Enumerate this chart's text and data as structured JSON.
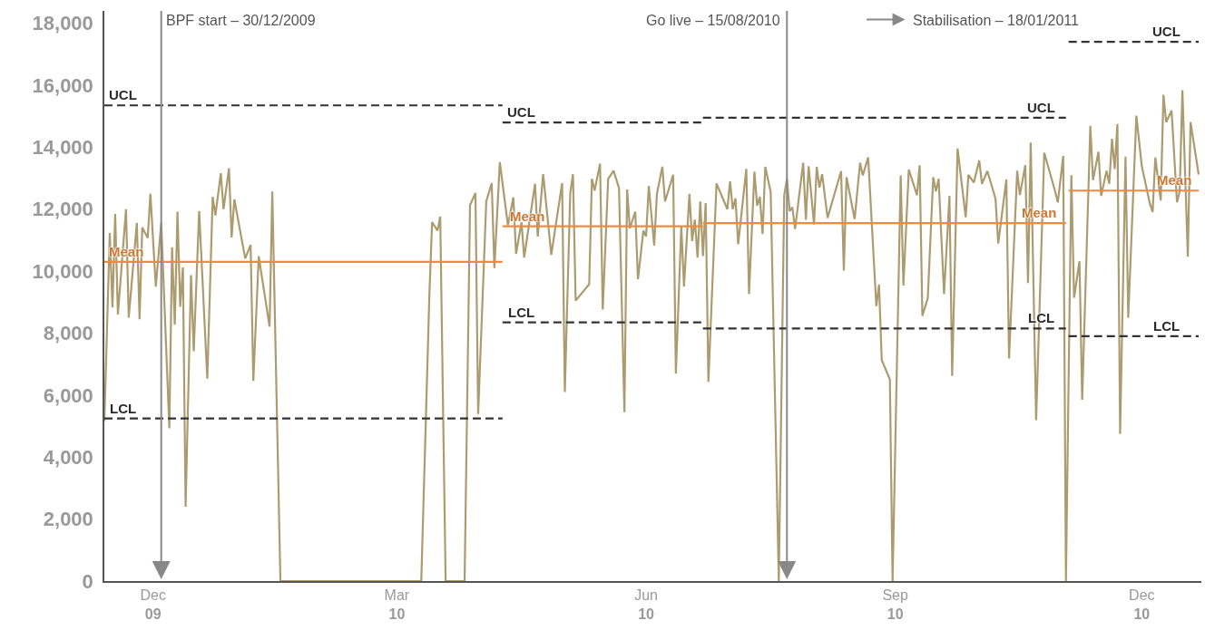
{
  "chart_data": {
    "type": "line",
    "marker": "none",
    "xlim": [
      "2009-11-13",
      "2010-12-23"
    ],
    "xticks": [
      {
        "value": "2009-12-01",
        "label": "Dec\n09"
      },
      {
        "value": "2010-03-01",
        "label": "Mar\n10"
      },
      {
        "value": "2010-06-01",
        "label": "Jun\n10"
      },
      {
        "value": "2010-09-01",
        "label": "Sep\n10"
      },
      {
        "value": "2010-12-01",
        "label": "Dec\n10"
      }
    ],
    "ylim": [
      0,
      18400
    ],
    "yticks": [
      {
        "value": 0,
        "label": "0"
      },
      {
        "value": 2000,
        "label": "2,000"
      },
      {
        "value": 4000,
        "label": "4,000"
      },
      {
        "value": 6000,
        "label": "6,000"
      },
      {
        "value": 8000,
        "label": "8,000"
      },
      {
        "value": 10000,
        "label": "10,000"
      },
      {
        "value": 12000,
        "label": "12,000"
      },
      {
        "value": 14000,
        "label": "14,000"
      },
      {
        "value": 16000,
        "label": "16,000"
      },
      {
        "value": 18000,
        "label": "18,000"
      }
    ],
    "series": [
      {
        "color": "#ab9b6f",
        "line_style": "solid",
        "x": [
          "2009-11-13",
          "2009-11-15",
          "2009-11-16",
          "2009-11-17",
          "2009-11-18",
          "2009-11-21",
          "2009-11-22",
          "2009-11-25",
          "2009-11-26",
          "2009-11-27",
          "2009-11-29",
          "2009-11-30",
          "2009-12-02",
          "2009-12-04",
          "2009-12-07",
          "2009-12-08",
          "2009-12-09",
          "2009-12-10",
          "2009-12-11",
          "2009-12-12",
          "2009-12-13",
          "2009-12-15",
          "2009-12-16",
          "2009-12-18",
          "2009-12-21",
          "2009-12-23",
          "2009-12-24",
          "2009-12-26",
          "2009-12-27",
          "2009-12-29",
          "2009-12-30",
          "2009-12-31",
          "2010-01-04",
          "2010-01-06",
          "2010-01-07",
          "2010-01-09",
          "2010-01-13",
          "2010-01-14",
          "2010-01-17",
          "2010-03-10",
          "2010-03-13",
          "2010-03-14",
          "2010-03-16",
          "2010-03-17",
          "2010-03-19",
          "2010-03-26",
          "2010-03-28",
          "2010-03-30",
          "2010-03-31",
          "2010-04-03",
          "2010-04-05",
          "2010-04-06",
          "2010-04-08",
          "2010-04-11",
          "2010-04-13",
          "2010-04-14",
          "2010-04-16",
          "2010-04-17",
          "2010-04-21",
          "2010-04-22",
          "2010-04-24",
          "2010-04-27",
          "2010-05-01",
          "2010-05-02",
          "2010-05-04",
          "2010-05-05",
          "2010-05-06",
          "2010-05-11",
          "2010-05-12",
          "2010-05-13",
          "2010-05-15",
          "2010-05-16",
          "2010-05-18",
          "2010-05-20",
          "2010-05-22",
          "2010-05-24",
          "2010-05-25",
          "2010-05-26",
          "2010-05-28",
          "2010-05-29",
          "2010-05-31",
          "2010-06-01",
          "2010-06-02",
          "2010-06-04",
          "2010-06-05",
          "2010-06-07",
          "2010-06-08",
          "2010-06-11",
          "2010-06-12",
          "2010-06-14",
          "2010-06-15",
          "2010-06-17",
          "2010-06-18",
          "2010-06-19",
          "2010-06-20",
          "2010-06-21",
          "2010-06-22",
          "2010-06-23",
          "2010-06-24",
          "2010-06-27",
          "2010-07-01",
          "2010-07-02",
          "2010-07-03",
          "2010-07-04",
          "2010-07-05",
          "2010-07-08",
          "2010-07-09",
          "2010-07-11",
          "2010-07-12",
          "2010-07-13",
          "2010-07-14",
          "2010-07-15",
          "2010-07-17",
          "2010-07-20",
          "2010-07-22",
          "2010-07-23",
          "2010-07-24",
          "2010-07-25",
          "2010-07-26",
          "2010-07-29",
          "2010-07-30",
          "2010-07-31",
          "2010-08-02",
          "2010-08-03",
          "2010-08-04",
          "2010-08-05",
          "2010-08-07",
          "2010-08-12",
          "2010-08-13",
          "2010-08-14",
          "2010-08-17",
          "2010-08-19",
          "2010-08-20",
          "2010-08-22",
          "2010-08-25",
          "2010-08-26",
          "2010-08-27",
          "2010-08-30",
          "2010-08-31",
          "2010-09-03",
          "2010-09-04",
          "2010-09-06",
          "2010-09-09",
          "2010-09-10",
          "2010-09-11",
          "2010-09-13",
          "2010-09-15",
          "2010-09-16",
          "2010-09-17",
          "2010-09-19",
          "2010-09-21",
          "2010-09-22",
          "2010-09-24",
          "2010-09-27",
          "2010-09-28",
          "2010-09-30",
          "2010-10-02",
          "2010-10-03",
          "2010-10-05",
          "2010-10-08",
          "2010-10-09",
          "2010-10-12",
          "2010-10-13",
          "2010-10-16",
          "2010-10-17",
          "2010-10-19",
          "2010-10-20",
          "2010-10-21",
          "2010-10-23",
          "2010-10-26",
          "2010-10-30",
          "2010-10-31",
          "2010-11-02",
          "2010-11-03",
          "2010-11-05",
          "2010-11-06",
          "2010-11-08",
          "2010-11-09",
          "2010-11-12",
          "2010-11-13",
          "2010-11-15",
          "2010-11-16",
          "2010-11-18",
          "2010-11-19",
          "2010-11-20",
          "2010-11-21",
          "2010-11-22",
          "2010-11-23",
          "2010-11-25",
          "2010-11-26",
          "2010-11-29",
          "2010-12-01",
          "2010-12-04",
          "2010-12-05",
          "2010-12-06",
          "2010-12-08",
          "2010-12-09",
          "2010-12-10",
          "2010-12-12",
          "2010-12-14",
          "2010-12-15",
          "2010-12-16",
          "2010-12-18",
          "2010-12-19",
          "2010-12-22"
        ],
        "values": [
          5160,
          11230,
          8830,
          11850,
          8600,
          12000,
          8500,
          11560,
          8450,
          11410,
          11070,
          12500,
          9500,
          11560,
          4930,
          10770,
          8270,
          11920,
          8850,
          10120,
          2400,
          9870,
          7420,
          11940,
          6530,
          12400,
          11800,
          13160,
          12000,
          13320,
          11090,
          12320,
          10410,
          10850,
          6460,
          10480,
          8210,
          12570,
          0,
          0,
          9240,
          11580,
          11310,
          11760,
          0,
          0,
          12130,
          12520,
          5390,
          12250,
          12840,
          10100,
          13520,
          11480,
          12380,
          10560,
          11580,
          10440,
          12820,
          11120,
          13130,
          10530,
          12840,
          6100,
          12520,
          13130,
          9050,
          9580,
          12980,
          12600,
          13470,
          8760,
          12980,
          13240,
          12680,
          5450,
          12640,
          11380,
          11920,
          9740,
          11310,
          11120,
          12750,
          10830,
          12500,
          13370,
          12250,
          13110,
          6690,
          11450,
          9500,
          12500,
          10970,
          11660,
          10440,
          12250,
          10490,
          12200,
          6430,
          12830,
          12000,
          12900,
          12000,
          12350,
          10870,
          13300,
          9260,
          13210,
          12110,
          12400,
          11200,
          13370,
          12550,
          0,
          12450,
          12980,
          11940,
          12060,
          11360,
          13500,
          11660,
          13390,
          11510,
          13370,
          12700,
          13130,
          11720,
          13230,
          10020,
          13030,
          11680,
          13500,
          13090,
          13670,
          8870,
          9570,
          7130,
          6510,
          0,
          13090,
          9540,
          13280,
          12450,
          13420,
          8560,
          9130,
          13030,
          12580,
          12980,
          9260,
          12430,
          6620,
          13960,
          11740,
          13110,
          12860,
          13570,
          12820,
          13230,
          12340,
          10890,
          12960,
          7180,
          13240,
          12460,
          13420,
          9620,
          14150,
          5190,
          13820,
          12580,
          12220,
          13720,
          0,
          13100,
          9140,
          10320,
          5850,
          14690,
          12940,
          13850,
          12430,
          13240,
          12820,
          14270,
          13300,
          14750,
          4750,
          13700,
          8500,
          15020,
          13390,
          12180,
          11910,
          13670,
          12280,
          15690,
          14810,
          15180,
          12220,
          12580,
          15840,
          10470,
          14810,
          13120
        ]
      },
      {
        "color": "#333333",
        "line_style": "dashed",
        "x": [
          "2009-11-13",
          "2010-04-09"
        ],
        "values": [
          15350,
          15350
        ]
      },
      {
        "color": "#f08a3c",
        "line_style": "solid",
        "x": [
          "2009-11-13",
          "2010-04-09"
        ],
        "values": [
          10300,
          10300
        ]
      },
      {
        "color": "#333333",
        "line_style": "dashed",
        "x": [
          "2009-11-13",
          "2010-04-09"
        ],
        "values": [
          5250,
          5250
        ]
      },
      {
        "color": "#333333",
        "line_style": "dashed",
        "x": [
          "2010-04-09",
          "2010-06-22"
        ],
        "values": [
          14800,
          14800
        ]
      },
      {
        "color": "#f08a3c",
        "line_style": "solid",
        "x": [
          "2010-04-09",
          "2010-06-22"
        ],
        "values": [
          11450,
          11450
        ]
      },
      {
        "color": "#333333",
        "line_style": "dashed",
        "x": [
          "2010-04-09",
          "2010-06-22"
        ],
        "values": [
          8350,
          8350
        ]
      },
      {
        "color": "#333333",
        "line_style": "dashed",
        "x": [
          "2010-06-22",
          "2010-11-03"
        ],
        "values": [
          14950,
          14950
        ]
      },
      {
        "color": "#f08a3c",
        "line_style": "solid",
        "x": [
          "2010-06-22",
          "2010-11-03"
        ],
        "values": [
          11550,
          11550
        ]
      },
      {
        "color": "#333333",
        "line_style": "dashed",
        "x": [
          "2010-06-22",
          "2010-11-03"
        ],
        "values": [
          8150,
          8150
        ]
      },
      {
        "color": "#333333",
        "line_style": "dashed",
        "x": [
          "2010-11-04",
          "2010-12-22"
        ],
        "values": [
          17400,
          17400
        ]
      },
      {
        "color": "#f08a3c",
        "line_style": "solid",
        "x": [
          "2010-11-04",
          "2010-12-22"
        ],
        "values": [
          12600,
          12600
        ]
      },
      {
        "color": "#333333",
        "line_style": "dashed",
        "x": [
          "2010-11-04",
          "2010-12-22"
        ],
        "values": [
          7900,
          7900
        ]
      }
    ],
    "ref_lines": [
      {
        "axis": "x",
        "value": "2009-12-04",
        "label": "BPF start – 30/12/2009",
        "color": "#888888"
      },
      {
        "axis": "x",
        "value": "2010-07-23",
        "label": "Go live – 15/08/2010",
        "color": "#888888"
      }
    ],
    "annotations": [
      "Stabilisation – 18/01/2011",
      {
        "text": "UCL",
        "x": "2009-11-20",
        "y": 15350
      },
      {
        "text": "Mean",
        "x": "2009-11-21",
        "y": 10300
      },
      {
        "text": "LCL",
        "x": "2009-11-20",
        "y": 5250
      },
      {
        "text": "UCL",
        "x": "2010-04-16",
        "y": 14800
      },
      {
        "text": "Mean",
        "x": "2010-04-18",
        "y": 11450
      },
      {
        "text": "LCL",
        "x": "2010-04-16",
        "y": 8350
      },
      {
        "text": "UCL",
        "x": "2010-10-25",
        "y": 14950
      },
      {
        "text": "Mean",
        "x": "2010-10-24",
        "y": 11550
      },
      {
        "text": "LCL",
        "x": "2010-10-25",
        "y": 8150
      },
      {
        "text": "UCL",
        "x": "2010-12-10",
        "y": 17400
      },
      {
        "text": "Mean",
        "x": "2010-12-13",
        "y": 12600
      },
      {
        "text": "LCL",
        "x": "2010-12-10",
        "y": 7900
      }
    ]
  }
}
